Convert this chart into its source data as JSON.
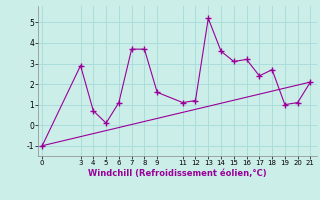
{
  "x": [
    0,
    3,
    4,
    5,
    6,
    7,
    8,
    9,
    11,
    12,
    13,
    14,
    15,
    16,
    17,
    18,
    19,
    20,
    21
  ],
  "y": [
    -1.0,
    2.9,
    0.7,
    0.1,
    1.1,
    3.7,
    3.7,
    1.6,
    1.1,
    1.2,
    5.2,
    3.6,
    3.1,
    3.2,
    2.4,
    2.7,
    1.0,
    1.1,
    2.1
  ],
  "trend_x": [
    0,
    21
  ],
  "trend_y": [
    -1.0,
    2.1
  ],
  "line_color": "#990099",
  "background_color": "#cceee8",
  "grid_color": "#aadddd",
  "xlabel": "Windchill (Refroidissement éolien,°C)",
  "yticks": [
    -1,
    0,
    1,
    2,
    3,
    4,
    5
  ],
  "xticks": [
    0,
    3,
    4,
    5,
    6,
    7,
    8,
    9,
    11,
    12,
    13,
    14,
    15,
    16,
    17,
    18,
    19,
    20,
    21
  ],
  "ylim": [
    -1.5,
    5.8
  ],
  "xlim": [
    -0.3,
    21.5
  ]
}
